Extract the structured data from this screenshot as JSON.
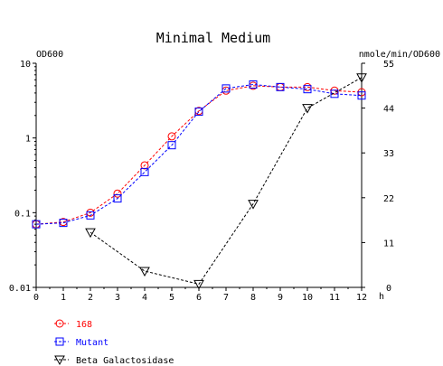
{
  "chart_data": {
    "type": "line",
    "title": "Minimal Medium",
    "x_unit": "h",
    "left_axis": {
      "label": "OD600",
      "scale": "log",
      "ylim": [
        0.01,
        10
      ],
      "ticks": [
        0.01,
        0.1,
        1,
        10
      ],
      "tick_labels": [
        "0.01",
        "0.1",
        "1",
        "10"
      ]
    },
    "right_axis": {
      "label": "nmole/min/OD600",
      "scale": "linear",
      "ylim": [
        0,
        55
      ],
      "ticks": [
        0,
        11,
        22,
        33,
        44,
        55
      ],
      "tick_labels": [
        "0",
        "11",
        "22",
        "33",
        "44",
        "55"
      ]
    },
    "x_axis": {
      "xlim": [
        0,
        12
      ],
      "ticks": [
        0,
        1,
        2,
        3,
        4,
        5,
        6,
        7,
        8,
        9,
        10,
        11,
        12
      ],
      "tick_labels": [
        "0",
        "1",
        "2",
        "3",
        "4",
        "5",
        "6",
        "7",
        "8",
        "9",
        "10",
        "11",
        "12"
      ]
    },
    "series": [
      {
        "name": "168",
        "axis": "left",
        "marker": "circle",
        "color": "#ff0000",
        "x": [
          0,
          1,
          2,
          3,
          4,
          5,
          6,
          7,
          8,
          9,
          10,
          11,
          12
        ],
        "y": [
          0.07,
          0.075,
          0.1,
          0.18,
          0.43,
          1.05,
          2.3,
          4.3,
          5.0,
          4.8,
          4.8,
          4.3,
          4.1
        ]
      },
      {
        "name": "Mutant",
        "axis": "left",
        "marker": "square",
        "color": "#0000ff",
        "x": [
          0,
          1,
          2,
          3,
          4,
          5,
          6,
          7,
          8,
          9,
          10,
          11,
          12
        ],
        "y": [
          0.07,
          0.073,
          0.092,
          0.155,
          0.35,
          0.8,
          2.25,
          4.6,
          5.2,
          4.8,
          4.5,
          3.9,
          3.7
        ]
      },
      {
        "name": "Beta Galactosidase",
        "axis": "right",
        "marker": "triangle-down",
        "color": "#000000",
        "x": [
          2,
          4,
          6,
          8,
          10,
          12
        ],
        "y": [
          13.5,
          4,
          0.8,
          20.5,
          44,
          51.5
        ]
      }
    ]
  }
}
